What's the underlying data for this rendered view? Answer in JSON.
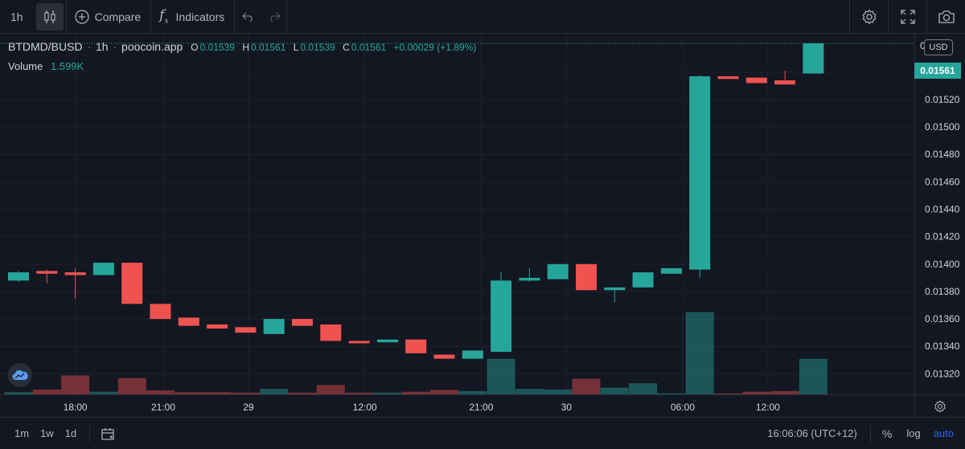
{
  "toolbar": {
    "interval": "1h",
    "compare_label": "Compare",
    "indicators_label": "Indicators"
  },
  "legend": {
    "symbol": "BTDMD/BUSD",
    "interval": "1h",
    "source": "poocoin.app",
    "o_label": "O",
    "o_value": "0.01539",
    "h_label": "H",
    "h_value": "0.01561",
    "l_label": "L",
    "l_value": "0.01539",
    "c_label": "C",
    "c_value": "0.01561",
    "change": "+0.00029 (+1.89%)",
    "volume_label": "Volume",
    "volume_value": "1.599K"
  },
  "price_axis": {
    "currency": "USD",
    "top_label": "0",
    "current_price": "0.01561",
    "ticks": [
      "0.01540",
      "0.01520",
      "0.01500",
      "0.01480",
      "0.01460",
      "0.01440",
      "0.01420",
      "0.01400",
      "0.01380",
      "0.01360",
      "0.01340",
      "0.01320"
    ]
  },
  "time_axis": {
    "labels": [
      "18:00",
      "21:00",
      "29",
      "12:00",
      "21:00",
      "30",
      "06:00",
      "12:00"
    ]
  },
  "bottom_bar": {
    "ranges": [
      "1m",
      "1w",
      "1d"
    ],
    "clock": "16:06:06 (UTC+12)",
    "percent": "%",
    "log": "log",
    "auto": "auto"
  },
  "colors": {
    "up": "#26a69a",
    "down": "#ef5350",
    "background": "#131722",
    "grid": "#1e222d",
    "accent": "#2962ff"
  },
  "chart_data": {
    "type": "candlestick",
    "symbol": "BTDMD/BUSD",
    "ylim": [
      0.01305,
      0.01568
    ],
    "candles": [
      {
        "o": 0.01388,
        "h": 0.01395,
        "l": 0.01387,
        "c": 0.01394
      },
      {
        "o": 0.01395,
        "h": 0.01396,
        "l": 0.01386,
        "c": 0.01393
      },
      {
        "o": 0.01394,
        "h": 0.01397,
        "l": 0.01375,
        "c": 0.01392
      },
      {
        "o": 0.01392,
        "h": 0.01401,
        "l": 0.01392,
        "c": 0.01401
      },
      {
        "o": 0.01401,
        "h": 0.01401,
        "l": 0.01371,
        "c": 0.01371
      },
      {
        "o": 0.01371,
        "h": 0.01371,
        "l": 0.0136,
        "c": 0.0136
      },
      {
        "o": 0.01361,
        "h": 0.01361,
        "l": 0.01355,
        "c": 0.01355
      },
      {
        "o": 0.01356,
        "h": 0.01356,
        "l": 0.01353,
        "c": 0.01353
      },
      {
        "o": 0.01354,
        "h": 0.01354,
        "l": 0.0135,
        "c": 0.0135
      },
      {
        "o": 0.01349,
        "h": 0.0136,
        "l": 0.01349,
        "c": 0.0136
      },
      {
        "o": 0.0136,
        "h": 0.0136,
        "l": 0.01355,
        "c": 0.01355
      },
      {
        "o": 0.01356,
        "h": 0.01356,
        "l": 0.01344,
        "c": 0.01344
      },
      {
        "o": 0.01344,
        "h": 0.01344,
        "l": 0.01343,
        "c": 0.01343
      },
      {
        "o": 0.01343,
        "h": 0.01345,
        "l": 0.01343,
        "c": 0.01345
      },
      {
        "o": 0.01345,
        "h": 0.01345,
        "l": 0.01335,
        "c": 0.01335
      },
      {
        "o": 0.01334,
        "h": 0.01334,
        "l": 0.01331,
        "c": 0.01331
      },
      {
        "o": 0.01331,
        "h": 0.01337,
        "l": 0.01331,
        "c": 0.01337
      },
      {
        "o": 0.01336,
        "h": 0.01394,
        "l": 0.01336,
        "c": 0.01388
      },
      {
        "o": 0.01388,
        "h": 0.01397,
        "l": 0.01387,
        "c": 0.0139
      },
      {
        "o": 0.01389,
        "h": 0.014,
        "l": 0.01389,
        "c": 0.014
      },
      {
        "o": 0.014,
        "h": 0.014,
        "l": 0.01381,
        "c": 0.01381
      },
      {
        "o": 0.01381,
        "h": 0.01383,
        "l": 0.01372,
        "c": 0.01383
      },
      {
        "o": 0.01383,
        "h": 0.01394,
        "l": 0.01383,
        "c": 0.01394
      },
      {
        "o": 0.01393,
        "h": 0.01397,
        "l": 0.01393,
        "c": 0.01397
      },
      {
        "o": 0.01396,
        "h": 0.01538,
        "l": 0.0139,
        "c": 0.01537
      },
      {
        "o": 0.01537,
        "h": 0.01537,
        "l": 0.01535,
        "c": 0.01535
      },
      {
        "o": 0.01536,
        "h": 0.01536,
        "l": 0.01532,
        "c": 0.01532
      },
      {
        "o": 0.01534,
        "h": 0.01541,
        "l": 0.01531,
        "c": 0.01531
      },
      {
        "o": 0.01539,
        "h": 0.01561,
        "l": 0.01539,
        "c": 0.01561
      }
    ],
    "volumes": [
      0.1,
      0.22,
      0.85,
      0.12,
      0.73,
      0.18,
      0.1,
      0.1,
      0.08,
      0.25,
      0.08,
      0.42,
      0.08,
      0.08,
      0.12,
      0.2,
      0.15,
      1.6,
      0.25,
      0.22,
      0.7,
      0.3,
      0.5,
      0.05,
      3.7,
      0.04,
      0.12,
      0.15,
      1.6
    ],
    "volume_max": 6.5,
    "grid": true
  }
}
